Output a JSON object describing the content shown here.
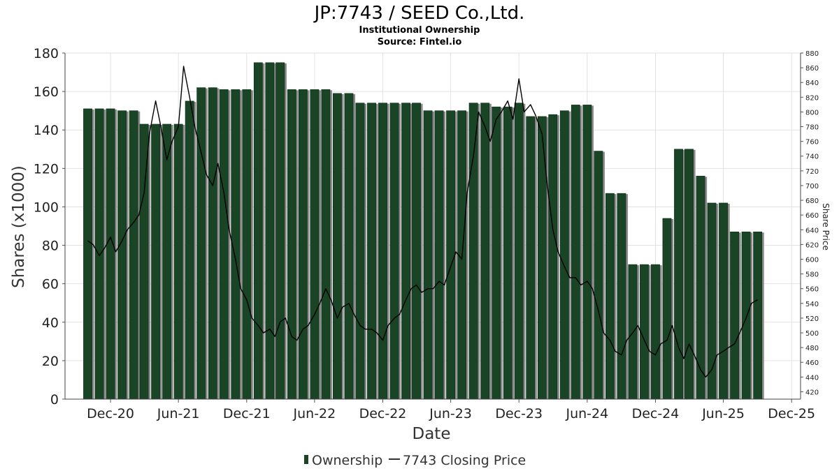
{
  "chart_data": {
    "type": "bar",
    "title": "JP:7743 / SEED Co.,Ltd.",
    "subtitle": "Institutional Ownership",
    "source": "Source: Fintel.io",
    "xlabel": "Date",
    "ylabel": "Shares (x1000)",
    "y2label": "Share Price",
    "ylim": [
      0,
      180
    ],
    "y2lim": [
      410,
      880
    ],
    "yticks": [
      0,
      20,
      40,
      60,
      80,
      100,
      120,
      140,
      160,
      180
    ],
    "y2ticks": [
      420,
      440,
      460,
      480,
      500,
      520,
      540,
      560,
      580,
      600,
      620,
      640,
      660,
      680,
      700,
      720,
      740,
      760,
      780,
      800,
      820,
      840,
      860,
      880
    ],
    "xlim": [
      "2020-08-01",
      "2025-12-25"
    ],
    "xticks": [
      {
        "label": "Dec-20",
        "date": "2020-12-01"
      },
      {
        "label": "Jun-21",
        "date": "2021-06-01"
      },
      {
        "label": "Dec-21",
        "date": "2021-12-01"
      },
      {
        "label": "Jun-22",
        "date": "2022-06-01"
      },
      {
        "label": "Dec-22",
        "date": "2022-12-01"
      },
      {
        "label": "Jun-23",
        "date": "2023-06-01"
      },
      {
        "label": "Dec-23",
        "date": "2023-12-01"
      },
      {
        "label": "Jun-24",
        "date": "2024-06-01"
      },
      {
        "label": "Dec-24",
        "date": "2024-12-01"
      },
      {
        "label": "Jun-25",
        "date": "2025-06-01"
      },
      {
        "label": "Dec-25",
        "date": "2025-12-01"
      }
    ],
    "legend_position": "bottom-center",
    "grid": true,
    "colors": {
      "bar": "#1a4426",
      "bar_shadow": "#8a8a8a",
      "line": "#000000"
    },
    "series": [
      {
        "name": "Ownership",
        "kind": "bar",
        "x": [
          "2020-10-01",
          "2020-11-01",
          "2020-12-01",
          "2021-01-01",
          "2021-02-01",
          "2021-03-01",
          "2021-04-01",
          "2021-05-01",
          "2021-06-01",
          "2021-07-01",
          "2021-08-01",
          "2021-09-01",
          "2021-10-01",
          "2021-11-01",
          "2021-12-01",
          "2022-01-01",
          "2022-02-01",
          "2022-03-01",
          "2022-04-01",
          "2022-05-01",
          "2022-06-01",
          "2022-07-01",
          "2022-08-01",
          "2022-09-01",
          "2022-10-01",
          "2022-11-01",
          "2022-12-01",
          "2023-01-01",
          "2023-02-01",
          "2023-03-01",
          "2023-04-01",
          "2023-05-01",
          "2023-06-01",
          "2023-07-01",
          "2023-08-01",
          "2023-09-01",
          "2023-10-01",
          "2023-11-01",
          "2023-12-01",
          "2024-01-01",
          "2024-02-01",
          "2024-03-01",
          "2024-04-01",
          "2024-05-01",
          "2024-06-01",
          "2024-07-01",
          "2024-08-01",
          "2024-09-01",
          "2024-10-01",
          "2024-11-01",
          "2024-12-01",
          "2025-01-01",
          "2025-02-01",
          "2025-03-01",
          "2025-04-01",
          "2025-05-01",
          "2025-06-01",
          "2025-07-01",
          "2025-08-01",
          "2025-09-01"
        ],
        "values": [
          151,
          151,
          151,
          150,
          150,
          143,
          143,
          143,
          143,
          155,
          162,
          162,
          161,
          161,
          161,
          175,
          175,
          175,
          161,
          161,
          161,
          161,
          159,
          159,
          154,
          154,
          154,
          154,
          154,
          154,
          150,
          150,
          150,
          150,
          154,
          154,
          152,
          152,
          154,
          147,
          147,
          148,
          150,
          153,
          153,
          129,
          107,
          107,
          70,
          70,
          70,
          94,
          130,
          130,
          116,
          102,
          102,
          87,
          87,
          87
        ]
      },
      {
        "name": "7743 Closing Price",
        "kind": "line",
        "axis": "right",
        "x": [
          "2020-10-01",
          "2020-10-15",
          "2020-11-01",
          "2020-11-15",
          "2020-12-01",
          "2020-12-15",
          "2021-01-01",
          "2021-01-15",
          "2021-02-01",
          "2021-02-15",
          "2021-03-01",
          "2021-03-15",
          "2021-04-01",
          "2021-04-15",
          "2021-05-01",
          "2021-05-15",
          "2021-06-01",
          "2021-06-15",
          "2021-07-01",
          "2021-07-15",
          "2021-08-01",
          "2021-08-15",
          "2021-09-01",
          "2021-09-15",
          "2021-10-01",
          "2021-10-15",
          "2021-11-01",
          "2021-11-15",
          "2021-12-01",
          "2021-12-15",
          "2022-01-01",
          "2022-01-15",
          "2022-02-01",
          "2022-02-15",
          "2022-03-01",
          "2022-03-15",
          "2022-04-01",
          "2022-04-15",
          "2022-05-01",
          "2022-05-15",
          "2022-06-01",
          "2022-06-15",
          "2022-07-01",
          "2022-07-15",
          "2022-08-01",
          "2022-08-15",
          "2022-09-01",
          "2022-09-15",
          "2022-10-01",
          "2022-10-15",
          "2022-11-01",
          "2022-11-15",
          "2022-12-01",
          "2022-12-15",
          "2023-01-01",
          "2023-01-15",
          "2023-02-01",
          "2023-02-15",
          "2023-03-01",
          "2023-03-15",
          "2023-04-01",
          "2023-04-15",
          "2023-05-01",
          "2023-05-15",
          "2023-06-01",
          "2023-06-15",
          "2023-07-01",
          "2023-07-15",
          "2023-08-01",
          "2023-08-15",
          "2023-09-01",
          "2023-09-15",
          "2023-10-01",
          "2023-10-15",
          "2023-11-01",
          "2023-11-15",
          "2023-12-01",
          "2023-12-15",
          "2024-01-01",
          "2024-01-15",
          "2024-02-01",
          "2024-02-15",
          "2024-03-01",
          "2024-03-15",
          "2024-04-01",
          "2024-04-15",
          "2024-05-01",
          "2024-05-15",
          "2024-06-01",
          "2024-06-15",
          "2024-07-01",
          "2024-07-15",
          "2024-08-01",
          "2024-08-15",
          "2024-09-01",
          "2024-09-15",
          "2024-10-01",
          "2024-10-15",
          "2024-11-01",
          "2024-11-15",
          "2024-12-01",
          "2024-12-15",
          "2025-01-01",
          "2025-01-15",
          "2025-02-01",
          "2025-02-15",
          "2025-03-01",
          "2025-03-15",
          "2025-04-01",
          "2025-04-15",
          "2025-05-01",
          "2025-05-15",
          "2025-06-01",
          "2025-06-15",
          "2025-07-01",
          "2025-07-15",
          "2025-08-01",
          "2025-08-15",
          "2025-09-01"
        ],
        "values": [
          625,
          620,
          605,
          615,
          630,
          610,
          625,
          640,
          650,
          660,
          690,
          770,
          815,
          780,
          735,
          760,
          780,
          862,
          820,
          780,
          745,
          715,
          700,
          730,
          690,
          640,
          600,
          560,
          545,
          520,
          510,
          500,
          505,
          495,
          515,
          520,
          495,
          490,
          505,
          510,
          525,
          540,
          560,
          545,
          520,
          535,
          540,
          525,
          510,
          505,
          505,
          500,
          490,
          510,
          520,
          525,
          545,
          560,
          565,
          555,
          560,
          560,
          570,
          565,
          590,
          610,
          600,
          690,
          740,
          800,
          780,
          760,
          790,
          800,
          815,
          790,
          845,
          800,
          810,
          795,
          770,
          700,
          640,
          610,
          590,
          575,
          575,
          565,
          570,
          560,
          530,
          500,
          490,
          475,
          470,
          490,
          500,
          510,
          490,
          475,
          470,
          485,
          490,
          510,
          480,
          465,
          485,
          470,
          450,
          440,
          450,
          470,
          475,
          480,
          485,
          500,
          520,
          540,
          545
        ]
      }
    ]
  }
}
